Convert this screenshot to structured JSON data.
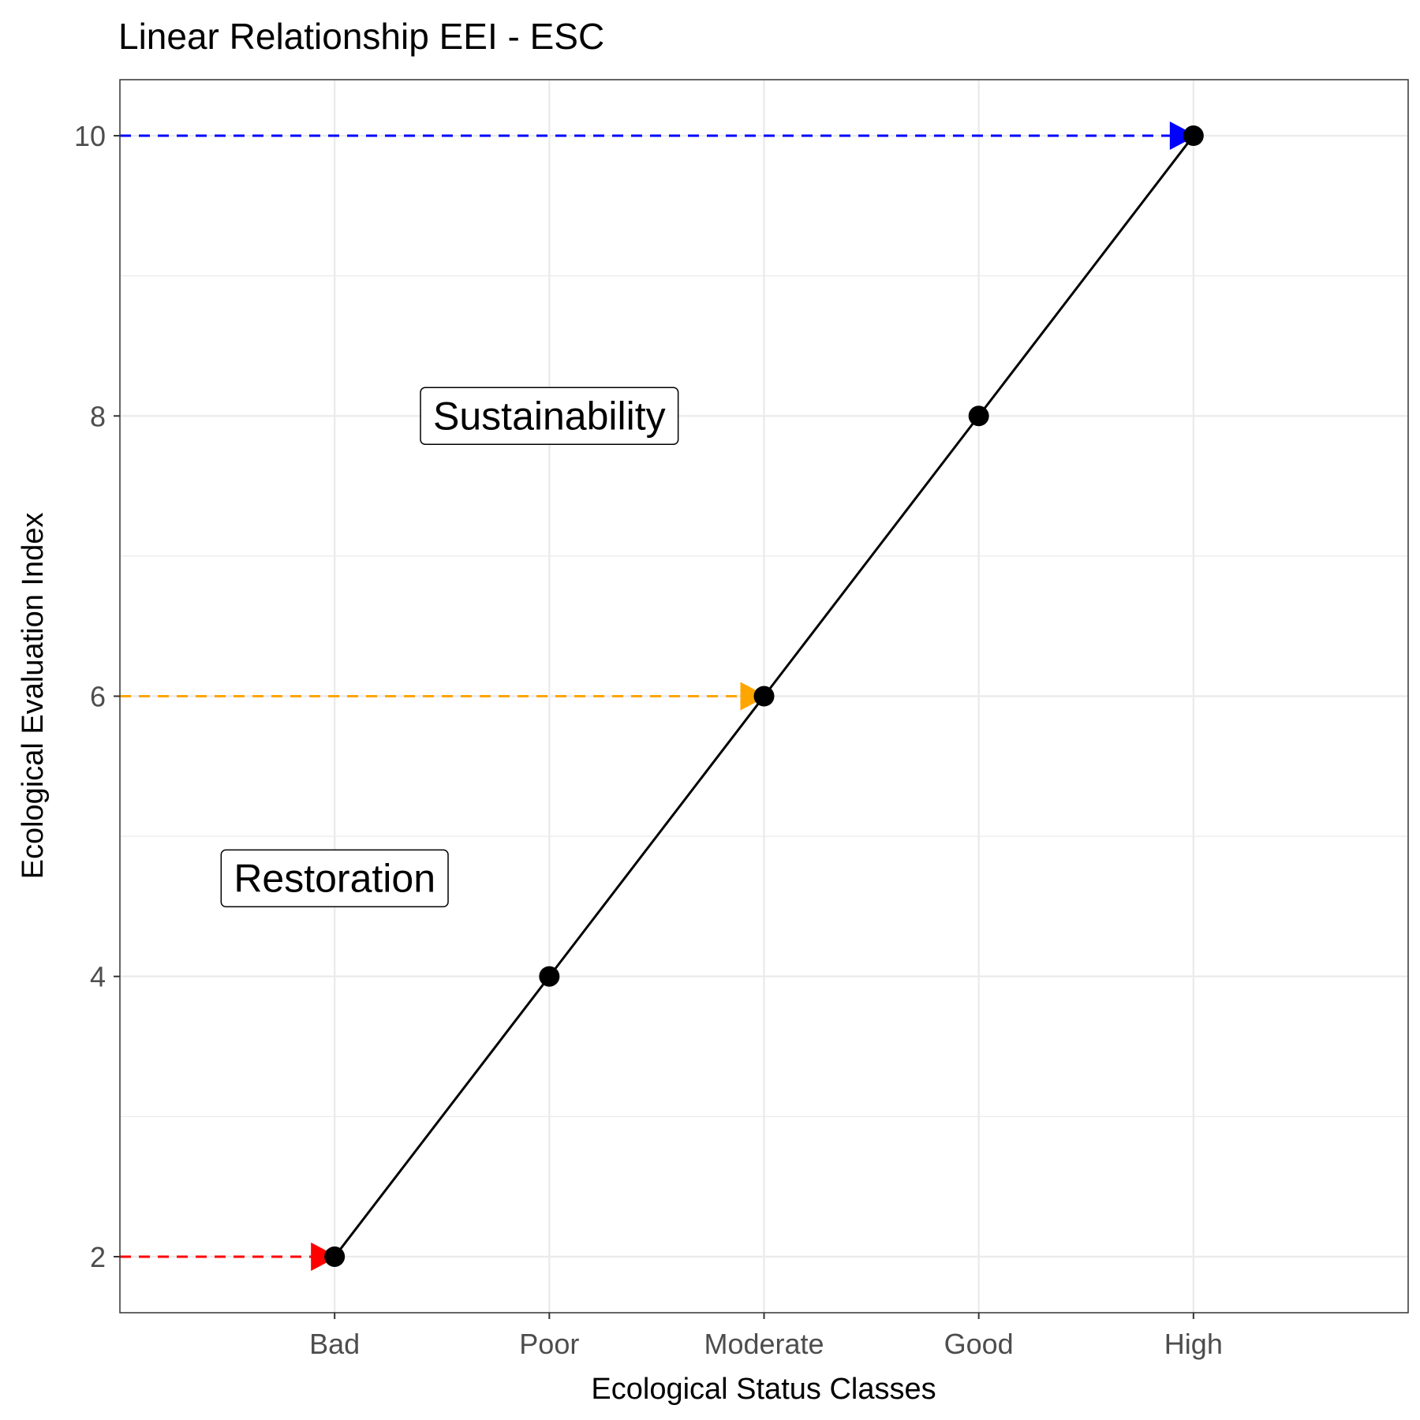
{
  "chart_data": {
    "type": "line",
    "title": "Linear Relationship EEI - ESC",
    "xlabel": "Ecological Status Classes",
    "ylabel": "Ecological Evaluation Index",
    "categories": [
      "Bad",
      "Poor",
      "Moderate",
      "Good",
      "High"
    ],
    "series": [
      {
        "values": [
          2,
          4,
          6,
          8,
          10
        ],
        "color": "#000000"
      }
    ],
    "reference_arrows": [
      {
        "y": 2,
        "to_category": "Bad",
        "color": "#ff0000"
      },
      {
        "y": 6,
        "to_category": "Moderate",
        "color": "#ffa500"
      },
      {
        "y": 10,
        "to_category": "High",
        "color": "#0000ff"
      }
    ],
    "annotations": [
      {
        "text": "Sustainability",
        "x_category_pos": 2,
        "y": 8
      },
      {
        "text": "Restoration",
        "x_category_pos": 1,
        "y": 4.7
      }
    ],
    "yticks": [
      2,
      4,
      6,
      8,
      10
    ],
    "ylim": [
      1.6,
      10.4
    ],
    "grid": true,
    "legend": "none"
  }
}
